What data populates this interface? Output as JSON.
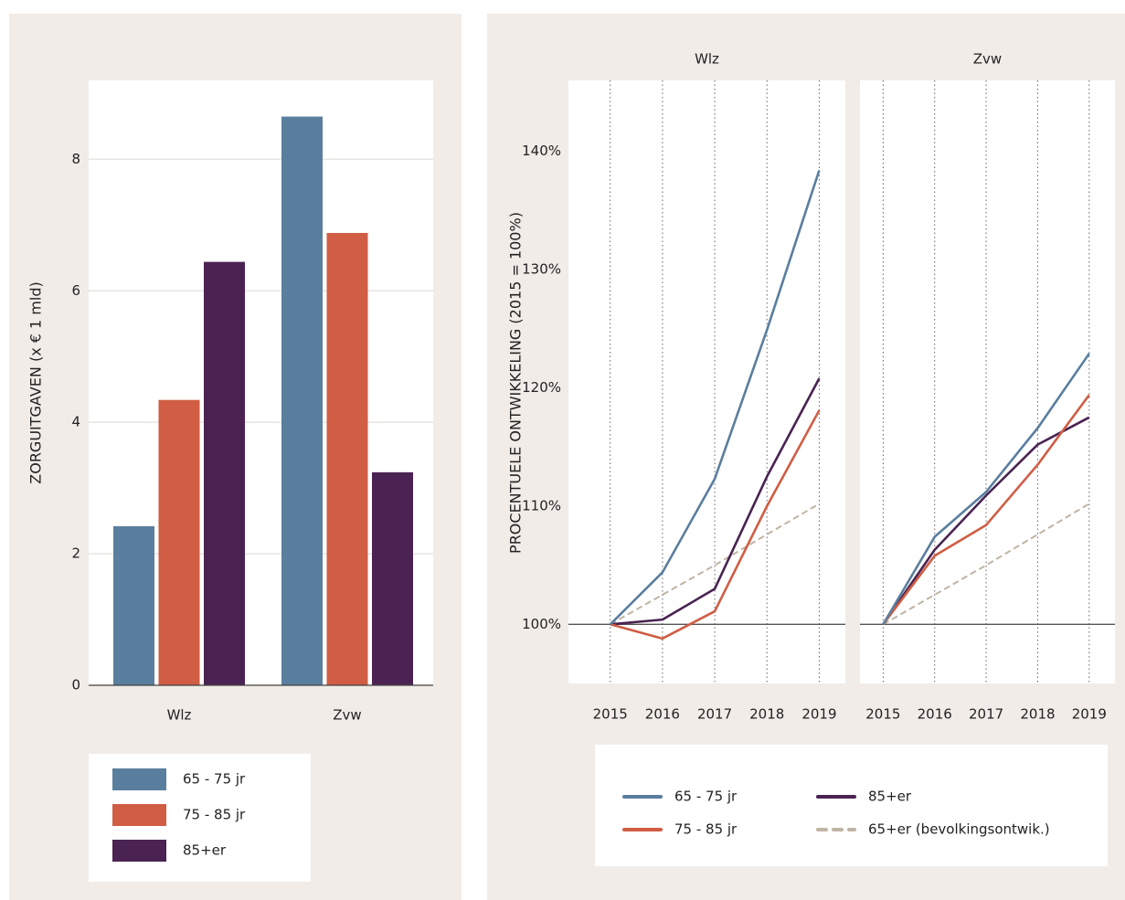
{
  "chart_data": [
    {
      "type": "bar",
      "ylabel": "ZORGUITGAVEN (x € 1 mld)",
      "categories": [
        "Wlz",
        "Zvw"
      ],
      "series": [
        {
          "name": "65 - 75 jr",
          "color": "#5a7e9e",
          "values": [
            2.42,
            8.65
          ]
        },
        {
          "name": "75 - 85 jr",
          "color": "#d05d44",
          "values": [
            4.34,
            6.88
          ]
        },
        {
          "name": "85+er",
          "color": "#4a2352",
          "values": [
            6.44,
            3.24
          ]
        }
      ],
      "ylim": [
        0,
        9.2
      ],
      "yticks": [
        0,
        2,
        4,
        6,
        8
      ],
      "grid": true
    },
    {
      "type": "line",
      "title": "Wlz",
      "ylabel": "PROCENTUELE ONTWIKKELING (2015 = 100%)",
      "x": [
        2015,
        2016,
        2017,
        2018,
        2019
      ],
      "xlim": [
        2014.2,
        2019.5
      ],
      "xticks": [
        2015,
        2016,
        2017,
        2018,
        2019
      ],
      "ylim": [
        95,
        146
      ],
      "yticks": [
        {
          "value": 100,
          "label": "100%"
        },
        {
          "value": 110,
          "label": "110%"
        },
        {
          "value": 120,
          "label": "120%"
        },
        {
          "value": 130,
          "label": "130%"
        },
        {
          "value": 140,
          "label": "140%"
        }
      ],
      "reference_line": 100,
      "grid": "x",
      "series": [
        {
          "name": "65 - 75 jr",
          "color": "#5a7e9e",
          "values": [
            100,
            104.4,
            112.3,
            124.9,
            138.4
          ]
        },
        {
          "name": "75 - 85 jr",
          "color": "#d05d44",
          "values": [
            100,
            98.8,
            101.1,
            110,
            118.1
          ]
        },
        {
          "name": "85+er",
          "color": "#4a2352",
          "values": [
            100,
            100.4,
            103,
            112.5,
            120.8
          ]
        },
        {
          "name": "65+er (bevolkingsontwik.)",
          "color": "#bfb4a4",
          "dashed": true,
          "values": [
            100,
            102.5,
            105,
            107.6,
            110.2
          ]
        }
      ]
    },
    {
      "type": "line",
      "title": "Zvw",
      "x": [
        2015,
        2016,
        2017,
        2018,
        2019
      ],
      "xlim": [
        2014.55,
        2019.5
      ],
      "xticks": [
        2015,
        2016,
        2017,
        2018,
        2019
      ],
      "ylim": [
        95,
        146
      ],
      "reference_line": 100,
      "grid": "x",
      "series": [
        {
          "color": "#5a7e9e",
          "values": [
            100,
            107.4,
            111.2,
            116.6,
            122.9
          ]
        },
        {
          "color": "#d05d44",
          "values": [
            100,
            105.8,
            108.4,
            113.5,
            119.4
          ]
        },
        {
          "color": "#4a2352",
          "values": [
            100,
            106.3,
            110.9,
            115.2,
            117.5
          ]
        },
        {
          "color": "#bfb4a4",
          "dashed": true,
          "values": [
            100,
            102.5,
            105,
            107.6,
            110.2
          ]
        }
      ]
    }
  ]
}
